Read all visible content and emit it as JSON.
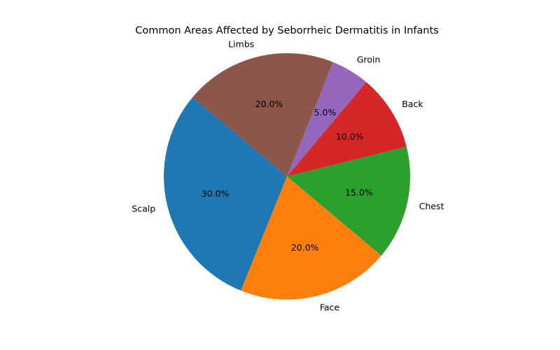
{
  "chart_data": {
    "type": "pie",
    "title": "Common Areas Affected by Seborrheic Dermatitis in Infants",
    "categories": [
      "Scalp",
      "Face",
      "Chest",
      "Back",
      "Groin",
      "Limbs"
    ],
    "values": [
      30.0,
      20.0,
      15.0,
      10.0,
      5.0,
      20.0
    ],
    "value_labels": [
      "30.0%",
      "20.0%",
      "15.0%",
      "10.0%",
      "5.0%",
      "20.0%"
    ],
    "colors": [
      "#1f77b4",
      "#ff7f0e",
      "#2ca02c",
      "#d62728",
      "#9467bd",
      "#8c564b"
    ],
    "start_angle_deg": 140,
    "direction": "counterclockwise",
    "legend": "none"
  }
}
